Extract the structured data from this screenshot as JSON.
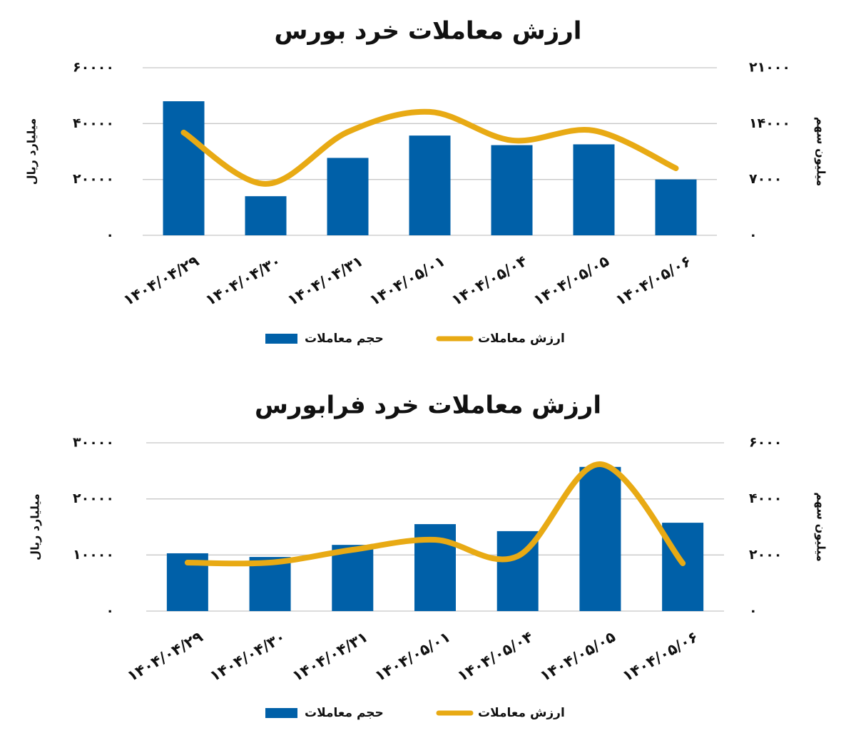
{
  "chart_data": [
    {
      "type": "combo",
      "title": "ارزش معاملات خرد بورس",
      "ylabel": "میلیارد ریال",
      "y2label": "میلیون سهم",
      "categories": [
        "۱۴۰۴/۰۴/۲۹",
        "۱۴۰۴/۰۴/۳۰",
        "۱۴۰۴/۰۴/۳۱",
        "۱۴۰۴/۰۵/۰۱",
        "۱۴۰۴/۰۵/۰۴",
        "۱۴۰۴/۰۵/۰۵",
        "۱۴۰۴/۰۵/۰۶"
      ],
      "series": [
        {
          "name": "حجم معاملات",
          "type": "bar",
          "axis": "y2",
          "color": "#0060a8",
          "values": [
            16800,
            4900,
            9700,
            12500,
            11300,
            11400,
            7000
          ]
        },
        {
          "name": "ارزش معاملات",
          "type": "line",
          "color": "#e8aa14",
          "values": [
            36800,
            18400,
            37000,
            44200,
            34000,
            37500,
            24000
          ]
        }
      ],
      "ylim": [
        0,
        60000
      ],
      "yticks": [
        {
          "value": 0,
          "label": "۰"
        },
        {
          "value": 20000,
          "label": "۲۰۰۰۰"
        },
        {
          "value": 40000,
          "label": "۴۰۰۰۰"
        },
        {
          "value": 60000,
          "label": "۶۰۰۰۰"
        }
      ],
      "y2lim": [
        0,
        21000
      ],
      "y2ticks": [
        {
          "value": 0,
          "label": "۰"
        },
        {
          "value": 7000,
          "label": "۷۰۰۰"
        },
        {
          "value": 14000,
          "label": "۱۴۰۰۰"
        },
        {
          "value": 21000,
          "label": "۲۱۰۰۰"
        }
      ],
      "grid": true
    },
    {
      "type": "combo",
      "title": "ارزش معاملات خرد فرابورس",
      "ylabel": "میلیارد ریال",
      "y2label": "میلیون سهم",
      "categories": [
        "۱۴۰۴/۰۴/۲۹",
        "۱۴۰۴/۰۴/۳۰",
        "۱۴۰۴/۰۴/۳۱",
        "۱۴۰۴/۰۵/۰۱",
        "۱۴۰۴/۰۵/۰۴",
        "۱۴۰۴/۰۵/۰۵",
        "۱۴۰۴/۰۵/۰۶"
      ],
      "series": [
        {
          "name": "حجم معاملات",
          "type": "bar",
          "axis": "y2",
          "color": "#0060a8",
          "values": [
            2060,
            1930,
            2360,
            3100,
            2850,
            5140,
            3150
          ]
        },
        {
          "name": "ارزش معاملات",
          "type": "line",
          "color": "#e8aa14",
          "values": [
            8640,
            8640,
            10930,
            12710,
            9790,
            26190,
            8520
          ]
        }
      ],
      "ylim": [
        0,
        30000
      ],
      "yticks": [
        {
          "value": 0,
          "label": "۰"
        },
        {
          "value": 10000,
          "label": "۱۰۰۰۰"
        },
        {
          "value": 20000,
          "label": "۲۰۰۰۰"
        },
        {
          "value": 30000,
          "label": "۳۰۰۰۰"
        }
      ],
      "y2lim": [
        0,
        6000
      ],
      "y2ticks": [
        {
          "value": 0,
          "label": "۰"
        },
        {
          "value": 2000,
          "label": "۲۰۰۰"
        },
        {
          "value": 4000,
          "label": "۴۰۰۰"
        },
        {
          "value": 6000,
          "label": "۶۰۰۰"
        }
      ],
      "grid": true
    }
  ]
}
